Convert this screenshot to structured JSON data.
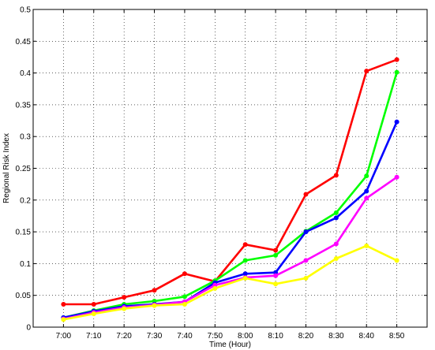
{
  "chart_data": {
    "type": "line",
    "title": "",
    "xlabel": "Time (Hour)",
    "ylabel": "Regional Risk Index",
    "categories": [
      "7:00",
      "7:10",
      "7:20",
      "7:30",
      "7:40",
      "7:50",
      "8:00",
      "8:10",
      "8:20",
      "8:30",
      "8:40",
      "8:50"
    ],
    "ylim": [
      0,
      0.5
    ],
    "yticks": [
      "0",
      "0.05",
      "0.1",
      "0.15",
      "0.2",
      "0.25",
      "0.3",
      "0.35",
      "0.4",
      "0.45",
      "0.5"
    ],
    "grid": true,
    "series": [
      {
        "color": "#ff0000",
        "values": [
          0.036,
          0.036,
          0.047,
          0.058,
          0.084,
          0.072,
          0.13,
          0.121,
          0.209,
          0.239,
          0.403,
          0.421
        ]
      },
      {
        "color": "#00ff00",
        "values": [
          0.015,
          0.026,
          0.036,
          0.041,
          0.048,
          0.073,
          0.105,
          0.113,
          0.151,
          0.18,
          0.238,
          0.401
        ]
      },
      {
        "color": "#0000ff",
        "values": [
          0.015,
          0.025,
          0.033,
          0.036,
          0.04,
          0.07,
          0.084,
          0.086,
          0.15,
          0.172,
          0.214,
          0.323
        ]
      },
      {
        "color": "#ff00ff",
        "values": [
          0.013,
          0.023,
          0.031,
          0.035,
          0.04,
          0.066,
          0.078,
          0.081,
          0.105,
          0.131,
          0.203,
          0.236
        ]
      },
      {
        "color": "#ffff00",
        "values": [
          0.012,
          0.021,
          0.029,
          0.034,
          0.036,
          0.061,
          0.077,
          0.068,
          0.077,
          0.108,
          0.128,
          0.105
        ]
      }
    ]
  }
}
